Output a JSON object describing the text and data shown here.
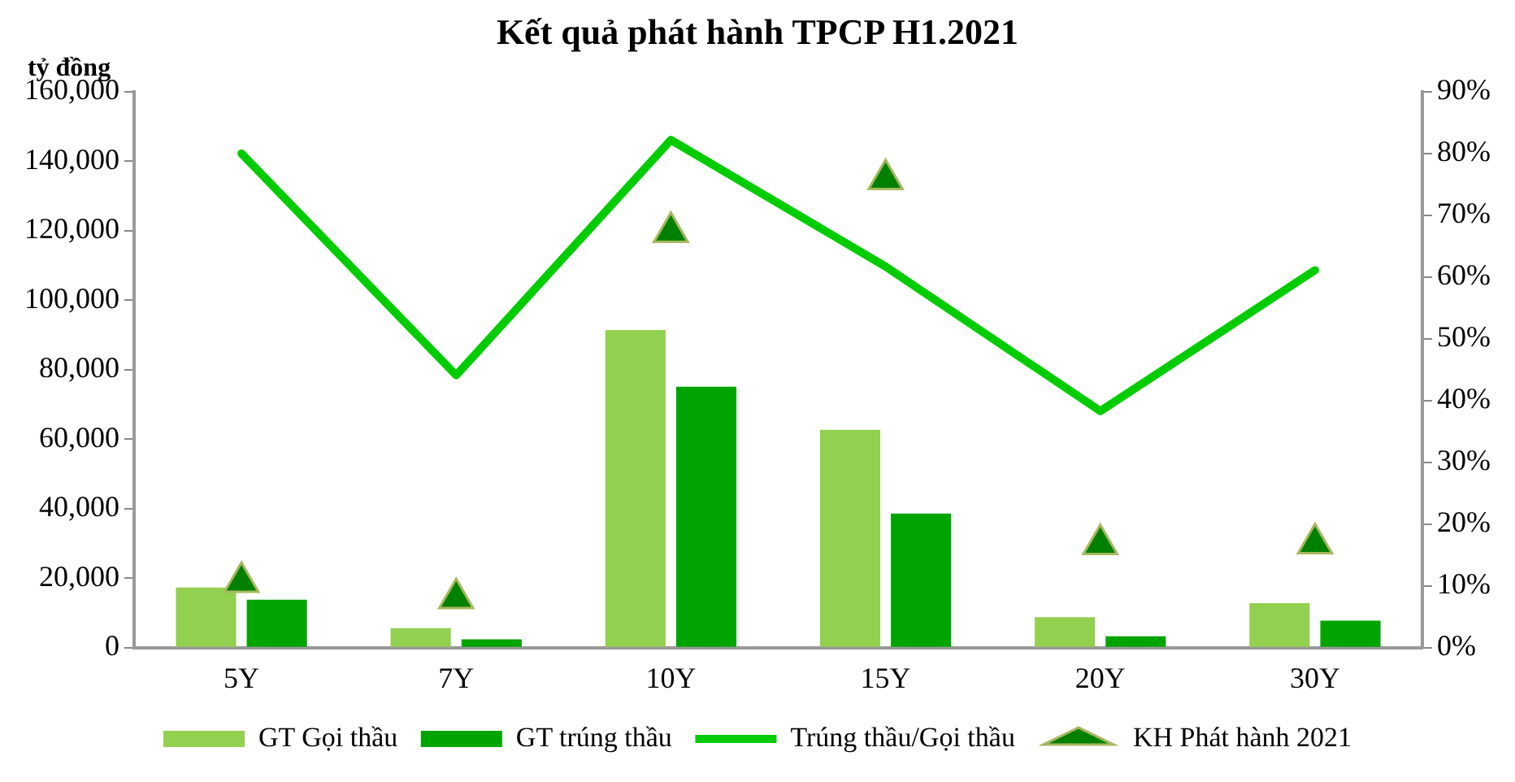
{
  "chart_data": {
    "type": "bar",
    "title": "Kết quả phát hành TPCP H1.2021",
    "ylabel": "tỷ đồng",
    "categories": [
      "5Y",
      "7Y",
      "10Y",
      "15Y",
      "20Y",
      "30Y"
    ],
    "series": [
      {
        "name": "GT Gọi thầu",
        "color": "#92d050",
        "values": [
          17300,
          5600,
          91400,
          62700,
          8800,
          12800
        ]
      },
      {
        "name": "GT trúng thầu",
        "color": "#00a400",
        "values": [
          13800,
          2400,
          75100,
          38600,
          3300,
          7800
        ]
      },
      {
        "name": "Trúng thầu/Gọi thầu",
        "type": "line",
        "axis": "y2",
        "color": "#00cc00",
        "marker": "none",
        "values": [
          80.0,
          44.1,
          82.2,
          61.7,
          38.3,
          61.1
        ]
      },
      {
        "name": "KH Phát hành 2021",
        "type": "scatter",
        "color": "#008000",
        "marker": "triangle",
        "values": [
          18900,
          14200,
          119600,
          134800,
          29800,
          30000
        ]
      }
    ],
    "ylim": [
      0,
      160000
    ],
    "yticks": [
      {
        "value": 0,
        "label": "0"
      },
      {
        "value": 20000,
        "label": "20,000"
      },
      {
        "value": 40000,
        "label": "40,000"
      },
      {
        "value": 60000,
        "label": "60,000"
      },
      {
        "value": 80000,
        "label": "80,000"
      },
      {
        "value": 100000,
        "label": "100,000"
      },
      {
        "value": 120000,
        "label": "120,000"
      },
      {
        "value": 140000,
        "label": "140,000"
      },
      {
        "value": 160000,
        "label": "160,000"
      }
    ],
    "y2lim": [
      0,
      90
    ],
    "y2ticks": [
      {
        "value": 0,
        "label": "0%"
      },
      {
        "value": 10,
        "label": "10%"
      },
      {
        "value": 20,
        "label": "20%"
      },
      {
        "value": 30,
        "label": "30%"
      },
      {
        "value": 40,
        "label": "40%"
      },
      {
        "value": 50,
        "label": "50%"
      },
      {
        "value": 60,
        "label": "60%"
      },
      {
        "value": 70,
        "label": "70%"
      },
      {
        "value": 80,
        "label": "80%"
      },
      {
        "value": 90,
        "label": "90%"
      }
    ],
    "grid": false,
    "legend": "bottom"
  }
}
